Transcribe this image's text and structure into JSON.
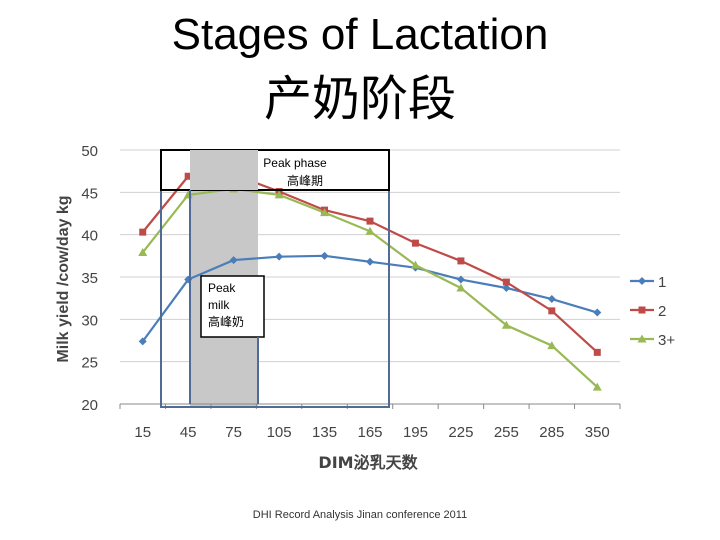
{
  "slide": {
    "title": "Stages of Lactation",
    "subtitle": "产奶阶段",
    "footer": "DHI Record Analysis Jinan conference 2011"
  },
  "chart_data": {
    "type": "line",
    "xlabel": "DIM泌乳天数",
    "ylabel": "Milk yield /cow/day kg",
    "x": [
      "15",
      "45",
      "75",
      "105",
      "135",
      "165",
      "195",
      "225",
      "255",
      "285",
      "350"
    ],
    "ylim": [
      20,
      50
    ],
    "yticks": [
      "20",
      "25",
      "30",
      "35",
      "40",
      "45",
      "50"
    ],
    "grid": true,
    "legend_position": "right",
    "series": [
      {
        "name": "1",
        "color": "#4a7ebb",
        "marker": "diamond",
        "values": [
          27.4,
          34.7,
          37.0,
          37.4,
          37.5,
          36.8,
          36.1,
          34.7,
          33.7,
          32.4,
          30.8
        ]
      },
      {
        "name": "2",
        "color": "#be4b48",
        "marker": "square",
        "values": [
          40.3,
          46.9,
          47.1,
          45.1,
          42.9,
          41.6,
          39.0,
          36.9,
          34.4,
          31.0,
          26.1
        ]
      },
      {
        "name": "3+",
        "color": "#98b954",
        "marker": "triangle",
        "values": [
          37.9,
          44.7,
          45.4,
          44.7,
          42.6,
          40.4,
          36.4,
          33.7,
          29.3,
          26.9,
          22.0
        ]
      }
    ],
    "annotations": [
      {
        "name": "peak-phase",
        "lines": [
          "Peak phase",
          "高峰期"
        ],
        "x_range": [
          "45",
          "75"
        ]
      },
      {
        "name": "peak-milk",
        "lines": [
          "Peak",
          "milk",
          "高峰奶"
        ]
      }
    ]
  }
}
